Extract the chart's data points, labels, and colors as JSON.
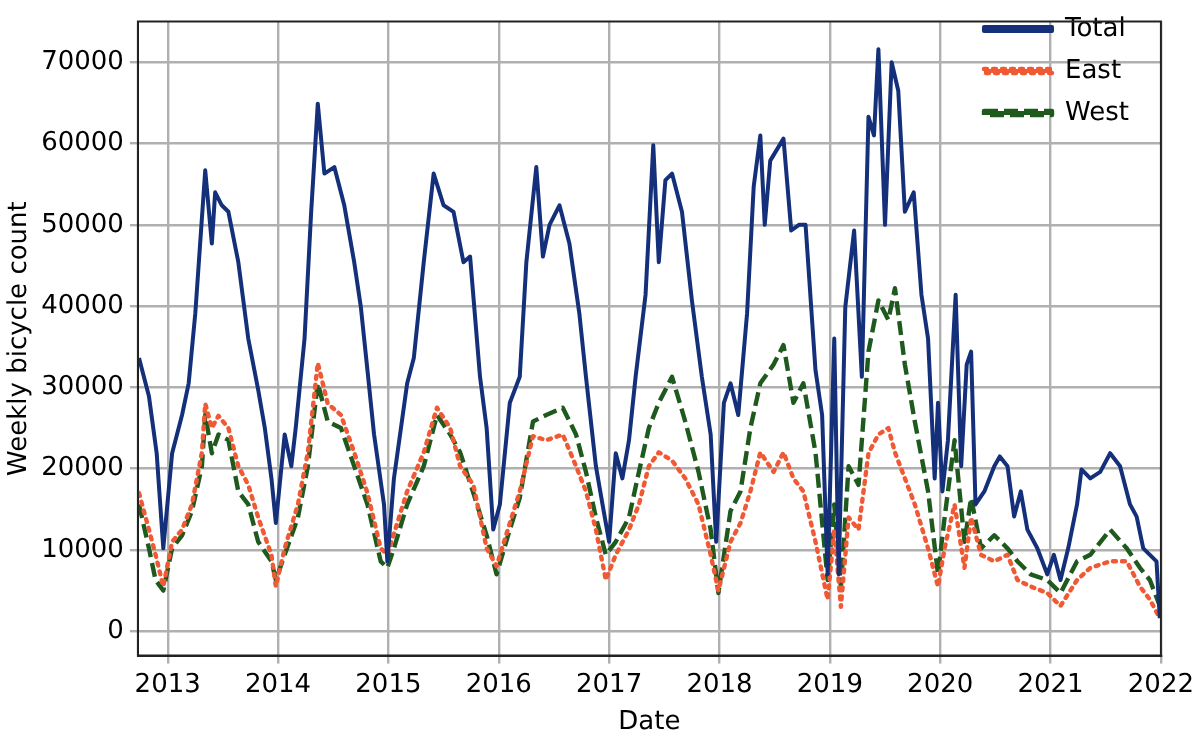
{
  "chart_data": {
    "type": "line",
    "xlabel": "Date",
    "ylabel": "Weekly bicycle count",
    "xlim": [
      2012.73,
      2022
    ],
    "xticks": [
      2013,
      2014,
      2015,
      2016,
      2017,
      2018,
      2019,
      2020,
      2021,
      2022
    ],
    "ylim": [
      -3000,
      75000
    ],
    "yticks": [
      0,
      10000,
      20000,
      30000,
      40000,
      50000,
      60000,
      70000
    ],
    "grid": true,
    "legend": "top right",
    "marker": "none",
    "series": [
      {
        "name": "Total",
        "color": "#14307a",
        "line_style": "solid",
        "x": [
          2012.74,
          2012.83,
          2012.9,
          2012.96,
          2013.04,
          2013.13,
          2013.19,
          2013.25,
          2013.34,
          2013.4,
          2013.43,
          2013.49,
          2013.55,
          2013.64,
          2013.73,
          2013.82,
          2013.88,
          2013.94,
          2013.98,
          2014.06,
          2014.12,
          2014.16,
          2014.24,
          2014.3,
          2014.36,
          2014.42,
          2014.51,
          2014.6,
          2014.69,
          2014.75,
          2014.81,
          2014.87,
          2014.96,
          2014.99,
          2015.05,
          2015.17,
          2015.23,
          2015.32,
          2015.41,
          2015.5,
          2015.59,
          2015.68,
          2015.74,
          2015.83,
          2015.89,
          2015.95,
          2016.01,
          2016.1,
          2016.19,
          2016.25,
          2016.34,
          2016.4,
          2016.46,
          2016.55,
          2016.64,
          2016.73,
          2016.79,
          2016.88,
          2016.94,
          2017,
          2017.06,
          2017.12,
          2017.18,
          2017.24,
          2017.33,
          2017.4,
          2017.45,
          2017.51,
          2017.57,
          2017.66,
          2017.75,
          2017.84,
          2017.92,
          2017.97,
          2018.04,
          2018.1,
          2018.17,
          2018.25,
          2018.31,
          2018.37,
          2018.41,
          2018.46,
          2018.58,
          2018.65,
          2018.72,
          2018.78,
          2018.87,
          2018.93,
          2018.98,
          2019.04,
          2019.08,
          2019.14,
          2019.22,
          2019.29,
          2019.35,
          2019.4,
          2019.44,
          2019.5,
          2019.56,
          2019.62,
          2019.68,
          2019.76,
          2019.83,
          2019.89,
          2019.95,
          2019.98,
          2020.02,
          2020.07,
          2020.14,
          2020.19,
          2020.24,
          2020.28,
          2020.32,
          2020.4,
          2020.49,
          2020.54,
          2020.61,
          2020.67,
          2020.73,
          2020.79,
          2020.88,
          2020.97,
          2021.03,
          2021.09,
          2021.16,
          2021.24,
          2021.28,
          2021.36,
          2021.45,
          2021.54,
          2021.63,
          2021.72,
          2021.78,
          2021.84,
          2021.9,
          2021.96,
          2021.99
        ],
        "values": [
          33600,
          28900,
          21900,
          10200,
          21900,
          26600,
          30500,
          39100,
          56700,
          47700,
          54000,
          52400,
          51600,
          45400,
          36000,
          29700,
          25000,
          18800,
          13300,
          24200,
          20300,
          25000,
          36000,
          51600,
          64900,
          56300,
          57100,
          52400,
          45400,
          39900,
          32100,
          24200,
          15600,
          8600,
          18800,
          30500,
          33600,
          45400,
          56300,
          52400,
          51600,
          45400,
          46100,
          31300,
          25000,
          12500,
          15600,
          28100,
          31300,
          45400,
          57100,
          46100,
          50000,
          52400,
          47700,
          39100,
          31300,
          20300,
          15600,
          11000,
          21900,
          18800,
          23500,
          31300,
          41400,
          59800,
          45400,
          55500,
          56300,
          51600,
          40700,
          31300,
          24200,
          11000,
          28100,
          30500,
          26600,
          39100,
          54700,
          61000,
          50000,
          57900,
          60600,
          49300,
          50000,
          50000,
          32100,
          26600,
          7000,
          36000,
          7000,
          39900,
          49300,
          31300,
          63300,
          61000,
          71600,
          50000,
          70000,
          66500,
          51600,
          54000,
          41400,
          36000,
          18800,
          28100,
          17200,
          23500,
          41400,
          20300,
          32800,
          34400,
          15600,
          17200,
          20300,
          21500,
          20300,
          14100,
          17200,
          12500,
          10200,
          7000,
          9400,
          6300,
          10200,
          15600,
          19900,
          18800,
          19600,
          21900,
          20300,
          15600,
          14100,
          10200,
          9400,
          8600,
          1600
        ]
      },
      {
        "name": "East",
        "color": "#ef5a35",
        "line_style": "dotted",
        "x": [
          2012.74,
          2012.83,
          2012.89,
          2012.96,
          2013.04,
          2013.13,
          2013.22,
          2013.31,
          2013.34,
          2013.4,
          2013.46,
          2013.55,
          2013.64,
          2013.73,
          2013.82,
          2013.94,
          2013.98,
          2014.06,
          2014.18,
          2014.27,
          2014.36,
          2014.45,
          2014.57,
          2014.69,
          2014.81,
          2014.93,
          2014.99,
          2015.05,
          2015.17,
          2015.32,
          2015.44,
          2015.56,
          2015.65,
          2015.77,
          2015.89,
          2015.98,
          2016.1,
          2016.19,
          2016.31,
          2016.43,
          2016.58,
          2016.7,
          2016.79,
          2016.88,
          2016.97,
          2017.06,
          2017.18,
          2017.27,
          2017.36,
          2017.45,
          2017.57,
          2017.69,
          2017.81,
          2017.92,
          2017.99,
          2018.1,
          2018.19,
          2018.28,
          2018.37,
          2018.49,
          2018.58,
          2018.67,
          2018.76,
          2018.87,
          2018.98,
          2019.04,
          2019.1,
          2019.17,
          2019.26,
          2019.35,
          2019.44,
          2019.53,
          2019.59,
          2019.68,
          2019.77,
          2019.89,
          2019.98,
          2020.04,
          2020.13,
          2020.22,
          2020.28,
          2020.37,
          2020.49,
          2020.61,
          2020.7,
          2020.82,
          2020.97,
          2021.09,
          2021.24,
          2021.36,
          2021.54,
          2021.69,
          2021.81,
          2021.9,
          2021.99
        ],
        "values": [
          17000,
          12500,
          9400,
          5500,
          11000,
          12500,
          15600,
          22000,
          28000,
          25000,
          26500,
          25000,
          20300,
          18000,
          14000,
          9400,
          5500,
          10200,
          15600,
          22000,
          33000,
          28000,
          26600,
          22000,
          17000,
          10200,
          9400,
          12000,
          17200,
          22000,
          27500,
          25000,
          20300,
          18000,
          10200,
          8000,
          13300,
          17200,
          24000,
          23500,
          24200,
          20300,
          17200,
          12500,
          6300,
          9400,
          12500,
          15600,
          20300,
          22000,
          21000,
          18800,
          15600,
          9400,
          5000,
          11000,
          13300,
          17200,
          22000,
          19600,
          22000,
          18800,
          17200,
          11000,
          3900,
          12500,
          3000,
          14000,
          12500,
          21900,
          24200,
          25000,
          22000,
          18800,
          15600,
          10200,
          5500,
          10200,
          15600,
          7800,
          14000,
          9400,
          8600,
          9400,
          6300,
          5500,
          4700,
          3100,
          6300,
          7800,
          8600,
          8600,
          5500,
          3900,
          1600
        ]
      },
      {
        "name": "West",
        "color": "#1e5a1e",
        "line_style": "dashed",
        "x": [
          2012.74,
          2012.83,
          2012.89,
          2012.96,
          2013.04,
          2013.13,
          2013.22,
          2013.31,
          2013.34,
          2013.4,
          2013.46,
          2013.55,
          2013.64,
          2013.73,
          2013.82,
          2013.94,
          2013.98,
          2014.06,
          2014.18,
          2014.27,
          2014.36,
          2014.45,
          2014.57,
          2014.69,
          2014.81,
          2014.93,
          2014.99,
          2015.05,
          2015.17,
          2015.32,
          2015.44,
          2015.56,
          2015.65,
          2015.77,
          2015.89,
          2015.98,
          2016.1,
          2016.19,
          2016.31,
          2016.43,
          2016.58,
          2016.7,
          2016.79,
          2016.88,
          2016.97,
          2017.06,
          2017.18,
          2017.27,
          2017.36,
          2017.45,
          2017.57,
          2017.69,
          2017.81,
          2017.92,
          2017.99,
          2018.1,
          2018.19,
          2018.28,
          2018.37,
          2018.49,
          2018.58,
          2018.67,
          2018.76,
          2018.87,
          2018.98,
          2019.04,
          2019.1,
          2019.17,
          2019.26,
          2019.35,
          2019.44,
          2019.53,
          2019.59,
          2019.68,
          2019.77,
          2019.89,
          2019.98,
          2020.04,
          2020.13,
          2020.22,
          2020.28,
          2020.37,
          2020.49,
          2020.61,
          2020.7,
          2020.82,
          2020.97,
          2021.09,
          2021.24,
          2021.36,
          2021.54,
          2021.69,
          2021.81,
          2021.9,
          2021.99
        ],
        "values": [
          15600,
          10200,
          6300,
          5000,
          10200,
          11800,
          14800,
          20300,
          26600,
          21900,
          24200,
          23500,
          17200,
          15600,
          11000,
          8600,
          6300,
          9400,
          14000,
          20300,
          30500,
          25800,
          25000,
          20300,
          15600,
          8600,
          7800,
          10200,
          15600,
          20300,
          26600,
          24200,
          22000,
          17000,
          11800,
          7000,
          12500,
          16400,
          25800,
          26600,
          27500,
          24200,
          19600,
          14000,
          9400,
          11000,
          14000,
          19600,
          25000,
          28100,
          31300,
          25800,
          19600,
          12500,
          4700,
          14800,
          17200,
          25000,
          30500,
          32800,
          35200,
          28100,
          30500,
          22000,
          6300,
          15600,
          5500,
          20300,
          18000,
          34400,
          40700,
          38300,
          42200,
          32800,
          25800,
          17200,
          7000,
          14000,
          23500,
          11000,
          16400,
          10200,
          11800,
          10200,
          8600,
          7000,
          6300,
          4700,
          8600,
          9400,
          12500,
          10200,
          7800,
          6300,
          3100
        ]
      }
    ]
  }
}
